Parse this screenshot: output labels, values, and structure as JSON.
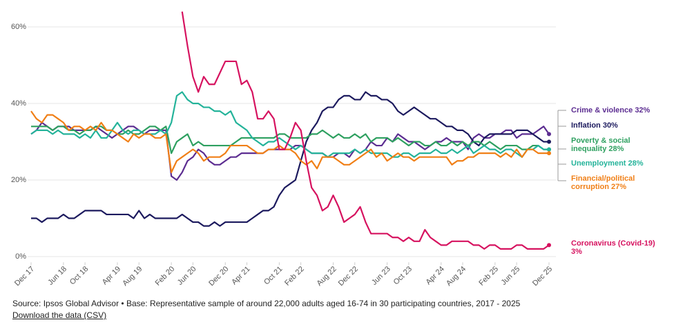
{
  "chart_data": {
    "type": "line",
    "categories": [
      "Dec 17",
      null,
      null,
      null,
      null,
      null,
      "Jun 18",
      null,
      null,
      null,
      "Oct 18",
      null,
      null,
      null,
      null,
      null,
      "Apr 19",
      null,
      null,
      null,
      "Aug 19",
      null,
      null,
      null,
      null,
      null,
      "Feb 20",
      null,
      null,
      null,
      "Jun 20",
      null,
      null,
      null,
      null,
      null,
      "Dec 20",
      null,
      null,
      null,
      "Apr 21",
      null,
      null,
      null,
      null,
      null,
      "Oct 21",
      null,
      null,
      null,
      "Feb 22",
      null,
      null,
      null,
      null,
      null,
      "Aug 22",
      null,
      null,
      null,
      "Dec 22",
      null,
      null,
      null,
      null,
      null,
      "Jun 23",
      null,
      null,
      null,
      "Oct 23",
      null,
      null,
      null,
      null,
      null,
      "Apr 24",
      null,
      null,
      null,
      "Aug 24",
      null,
      null,
      null,
      null,
      null,
      "Feb 25",
      null,
      null,
      null,
      "Jun 25",
      null,
      null,
      null,
      null,
      null,
      "Dec 25"
    ],
    "series": [
      {
        "name": "Crime & violence 32%",
        "color": "#5c2d91",
        "values": [
          32,
          33,
          35,
          34,
          33,
          34,
          34,
          34,
          33,
          33,
          33,
          33,
          34,
          33,
          32,
          31,
          32,
          33,
          34,
          34,
          33,
          32,
          33,
          33,
          33,
          33,
          21,
          20,
          22,
          25,
          26,
          28,
          27,
          25,
          24,
          24,
          25,
          26,
          26,
          27,
          27,
          27,
          27,
          27,
          28,
          28,
          28,
          28,
          28,
          29,
          29,
          28,
          27,
          27,
          27,
          26,
          26,
          27,
          27,
          26,
          28,
          27,
          28,
          30,
          29,
          29,
          31,
          30,
          32,
          31,
          30,
          30,
          29,
          28,
          29,
          30,
          30,
          31,
          30,
          30,
          30,
          28,
          31,
          32,
          31,
          31,
          32,
          32,
          33,
          33,
          31,
          32,
          32,
          32,
          33,
          34,
          32
        ]
      },
      {
        "name": "Inflation 30%",
        "color": "#1c1a5e",
        "values": [
          10,
          10,
          9,
          10,
          10,
          10,
          11,
          10,
          10,
          11,
          12,
          12,
          12,
          12,
          11,
          11,
          11,
          11,
          11,
          10,
          12,
          10,
          11,
          10,
          10,
          10,
          10,
          10,
          11,
          10,
          9,
          9,
          8,
          8,
          9,
          8,
          9,
          9,
          9,
          9,
          9,
          10,
          11,
          12,
          12,
          13,
          16,
          18,
          19,
          20,
          25,
          30,
          33,
          35,
          38,
          39,
          39,
          41,
          42,
          42,
          41,
          41,
          43,
          42,
          42,
          41,
          41,
          40,
          38,
          37,
          38,
          39,
          38,
          37,
          36,
          36,
          35,
          34,
          34,
          33,
          33,
          32,
          30,
          29,
          31,
          32,
          32,
          32,
          32,
          32,
          33,
          33,
          33,
          32,
          31,
          30,
          30
        ]
      },
      {
        "name": "Poverty & social inequality 28%",
        "color": "#2ea060",
        "values": [
          34,
          34,
          34,
          34,
          33,
          34,
          34,
          33,
          33,
          32,
          33,
          33,
          34,
          34,
          33,
          33,
          32,
          32,
          33,
          32,
          32,
          33,
          34,
          34,
          33,
          34,
          27,
          30,
          31,
          32,
          29,
          30,
          29,
          29,
          29,
          29,
          29,
          29,
          30,
          31,
          31,
          31,
          31,
          31,
          31,
          31,
          32,
          32,
          31,
          31,
          31,
          31,
          32,
          32,
          33,
          32,
          31,
          32,
          31,
          31,
          32,
          31,
          32,
          30,
          31,
          31,
          31,
          30,
          31,
          30,
          29,
          30,
          30,
          29,
          29,
          30,
          29,
          29,
          30,
          29,
          30,
          29,
          30,
          30,
          29,
          30,
          29,
          28,
          29,
          29,
          29,
          28,
          28,
          29,
          29,
          28,
          28
        ]
      },
      {
        "name": "Unemployment 28%",
        "color": "#24b39a",
        "values": [
          32,
          33,
          33,
          33,
          32,
          33,
          32,
          32,
          32,
          31,
          32,
          31,
          33,
          31,
          31,
          33,
          35,
          33,
          32,
          33,
          33,
          32,
          32,
          32,
          33,
          32,
          35,
          42,
          43,
          41,
          40,
          40,
          39,
          39,
          38,
          38,
          37,
          38,
          35,
          34,
          33,
          31,
          30,
          29,
          30,
          30,
          31,
          30,
          29,
          28,
          29,
          28,
          27,
          27,
          27,
          26,
          27,
          27,
          27,
          27,
          28,
          27,
          28,
          27,
          27,
          27,
          27,
          26,
          26,
          27,
          27,
          26,
          27,
          27,
          27,
          28,
          27,
          27,
          28,
          27,
          28,
          29,
          27,
          28,
          29,
          28,
          28,
          27,
          28,
          28,
          27,
          26,
          28,
          28,
          29,
          28,
          28
        ]
      },
      {
        "name": "Financial/political corruption 27%",
        "color": "#f07f16",
        "values": [
          38,
          36,
          35,
          37,
          37,
          36,
          35,
          33,
          34,
          34,
          33,
          34,
          33,
          35,
          33,
          33,
          32,
          31,
          30,
          32,
          31,
          32,
          32,
          31,
          31,
          32,
          22,
          25,
          26,
          27,
          28,
          27,
          25,
          26,
          26,
          26,
          27,
          29,
          29,
          29,
          29,
          28,
          27,
          27,
          28,
          28,
          29,
          28,
          28,
          27,
          25,
          24,
          25,
          23,
          26,
          26,
          26,
          25,
          24,
          24,
          25,
          26,
          27,
          28,
          26,
          27,
          25,
          26,
          27,
          26,
          26,
          25,
          26,
          26,
          26,
          26,
          26,
          26,
          24,
          25,
          25,
          26,
          26,
          27,
          27,
          27,
          27,
          26,
          27,
          26,
          28,
          26,
          28,
          28,
          27,
          27,
          27
        ]
      },
      {
        "name": "Coronavirus (Covid-19) 3%",
        "color": "#d6125f",
        "values": [
          null,
          null,
          null,
          null,
          null,
          null,
          null,
          null,
          null,
          null,
          null,
          null,
          null,
          null,
          null,
          null,
          null,
          null,
          null,
          null,
          null,
          null,
          null,
          null,
          null,
          null,
          null,
          null,
          64,
          55,
          47,
          43,
          47,
          45,
          45,
          48,
          51,
          51,
          51,
          45,
          46,
          43,
          36,
          36,
          38,
          36,
          28,
          28,
          31,
          35,
          33,
          25,
          18,
          16,
          12,
          13,
          16,
          13,
          9,
          10,
          11,
          13,
          9,
          6,
          6,
          6,
          6,
          5,
          5,
          4,
          5,
          4,
          4,
          7,
          5,
          4,
          3,
          3,
          4,
          4,
          4,
          4,
          3,
          3,
          2,
          3,
          3,
          2,
          2,
          2,
          3,
          3,
          2,
          2,
          2,
          2,
          3
        ]
      }
    ],
    "ylim": [
      -1.5,
      66
    ],
    "yticks": [
      {
        "value": 0,
        "label": "0%"
      },
      {
        "value": 20,
        "label": "20%"
      },
      {
        "value": 40,
        "label": "40%"
      },
      {
        "value": 60,
        "label": "60%"
      }
    ],
    "grid": true,
    "source": "Source: Ipsos Global Advisor • Base: Representative sample of around 22,000 adults aged 16-74 in 30 participating countries, 2017 - 2025",
    "download": "Download the data (CSV)"
  }
}
